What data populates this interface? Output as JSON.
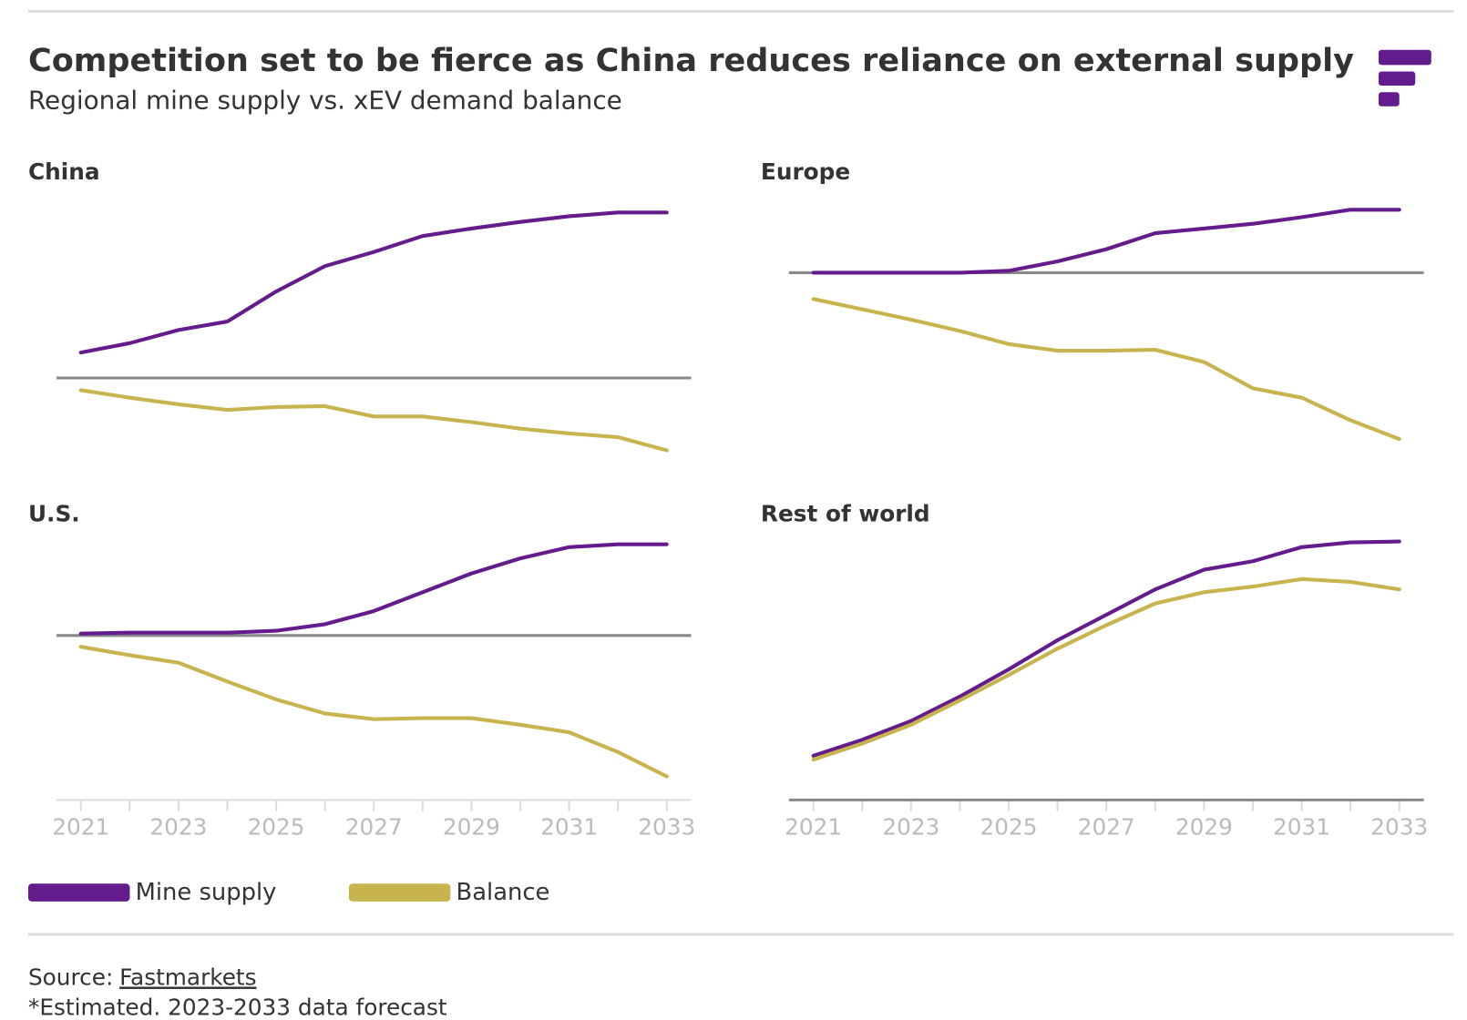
{
  "title": "Competition set to be fierce as China reduces reliance on external supply",
  "subtitle": "Regional mine supply vs. xEV demand balance",
  "source_label": "Source:",
  "source_link": "Fastmarkets",
  "note": "*Estimated. 2023-2033 data forecast",
  "chart_data": [
    {
      "type": "line",
      "title": "China",
      "x": [
        2021,
        2022,
        2023,
        2024,
        2025,
        2026,
        2027,
        2028,
        2029,
        2030,
        2031,
        2032,
        2033
      ],
      "xlim": [
        2020.5,
        2033.5
      ],
      "ylim": [
        -88,
        202
      ],
      "series": [
        {
          "name": "Mine supply",
          "color": "#641c8c",
          "values": [
            27,
            37,
            51,
            60,
            92,
            119,
            134,
            151,
            159,
            166,
            172,
            176,
            176
          ]
        },
        {
          "name": "Balance",
          "color": "#c8b44e",
          "values": [
            -13,
            -21,
            -28,
            -34,
            -31,
            -30,
            -41,
            -41,
            -47,
            -54,
            -59,
            -63,
            -77
          ]
        }
      ]
    },
    {
      "type": "line",
      "title": "Europe",
      "x": [
        2021,
        2022,
        2023,
        2024,
        2025,
        2026,
        2027,
        2028,
        2029,
        2030,
        2031,
        2032,
        2033
      ],
      "xlim": [
        2020.5,
        2033.5
      ],
      "ylim": [
        -200,
        90
      ],
      "series": [
        {
          "name": "Mine supply",
          "color": "#641c8c",
          "values": [
            0,
            0,
            0,
            0,
            2,
            12,
            25,
            42,
            47,
            52,
            59,
            67,
            67
          ]
        },
        {
          "name": "Balance",
          "color": "#c8b44e",
          "values": [
            -28,
            -39,
            -50,
            -62,
            -76,
            -83,
            -83,
            -82,
            -95,
            -123,
            -133,
            -157,
            -177
          ]
        }
      ]
    },
    {
      "type": "line",
      "title": "U.S.",
      "x": [
        2021,
        2022,
        2023,
        2024,
        2025,
        2026,
        2027,
        2028,
        2029,
        2030,
        2031,
        2032,
        2033
      ],
      "xlim": [
        2020.5,
        2033.5
      ],
      "ylim": [
        -175,
        111
      ],
      "xticks": [
        2021,
        2023,
        2025,
        2027,
        2029,
        2031,
        2033
      ],
      "series": [
        {
          "name": "Mine supply",
          "color": "#641c8c",
          "values": [
            2,
            3,
            3,
            3,
            5,
            12,
            26,
            46,
            66,
            82,
            94,
            97,
            97
          ]
        },
        {
          "name": "Balance",
          "color": "#c8b44e",
          "values": [
            -12,
            -21,
            -29,
            -49,
            -68,
            -83,
            -89,
            -88,
            -88,
            -95,
            -103,
            -124,
            -150
          ]
        }
      ]
    },
    {
      "type": "line",
      "title": "Rest of world",
      "x": [
        2021,
        2022,
        2023,
        2024,
        2025,
        2026,
        2027,
        2028,
        2029,
        2030,
        2031,
        2032,
        2033
      ],
      "xlim": [
        2020.5,
        2033.5
      ],
      "ylim": [
        0,
        286
      ],
      "xticks": [
        2021,
        2023,
        2025,
        2027,
        2029,
        2031,
        2033
      ],
      "series": [
        {
          "name": "Mine supply",
          "color": "#641c8c",
          "values": [
            47,
            64,
            84,
            110,
            139,
            170,
            197,
            224,
            245,
            254,
            269,
            274,
            275
          ]
        },
        {
          "name": "Balance",
          "color": "#c8b44e",
          "values": [
            43,
            60,
            80,
            106,
            133,
            161,
            186,
            209,
            221,
            227,
            235,
            232,
            224
          ]
        }
      ]
    }
  ]
}
